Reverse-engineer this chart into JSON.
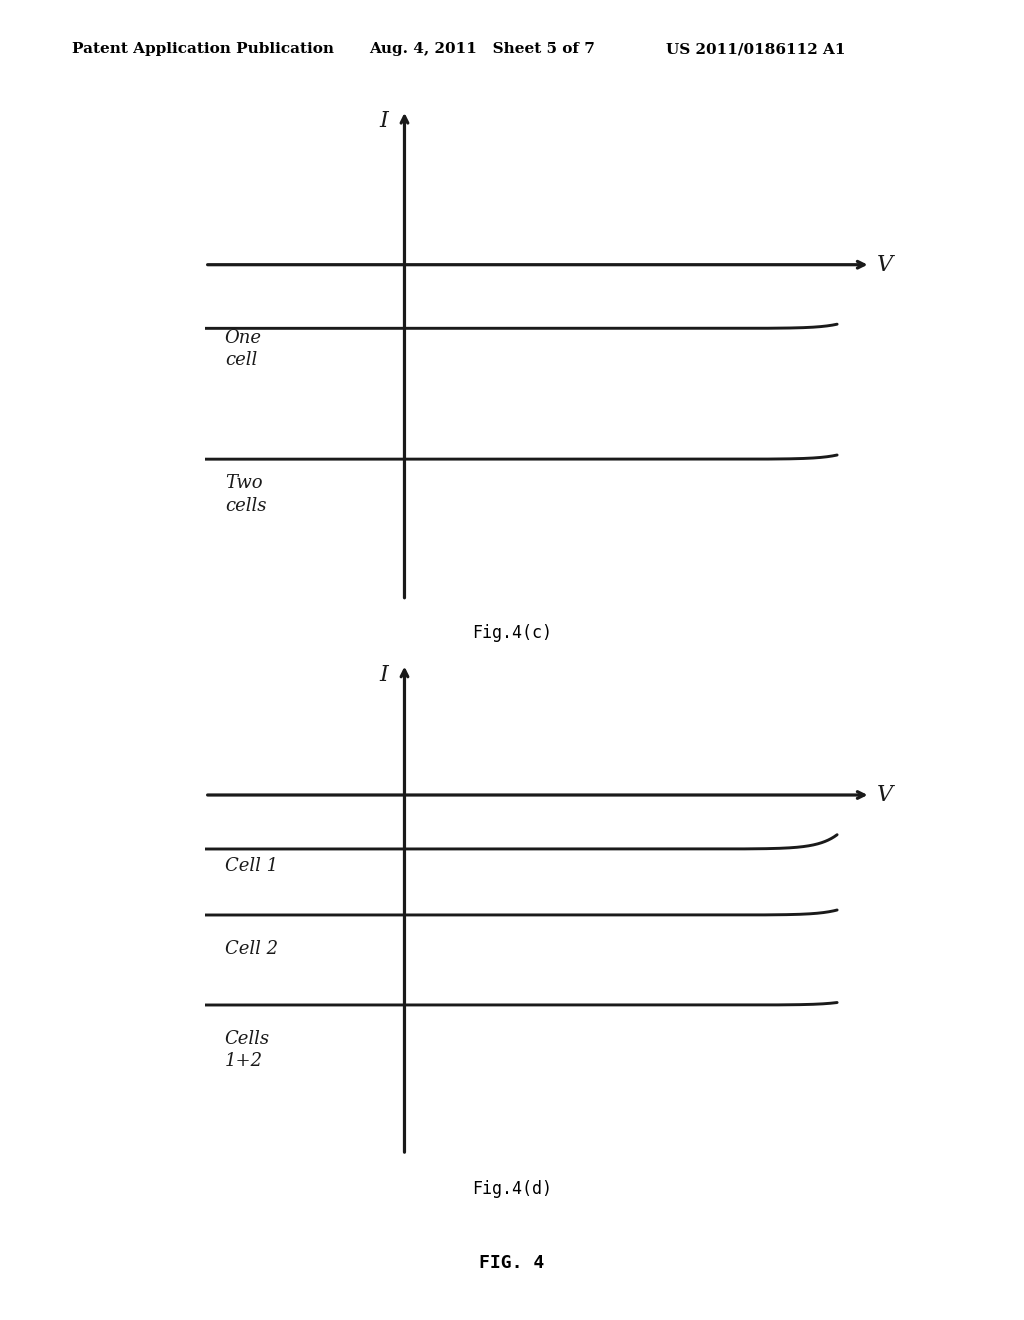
{
  "bg_color": "#ffffff",
  "header_left": "Patent Application Publication",
  "header_middle": "Aug. 4, 2011   Sheet 5 of 7",
  "header_right": "US 2011/0186112 A1",
  "header_fontsize": 11,
  "fig4c_caption": "Fig.4(c)",
  "fig4d_caption": "Fig.4(d)",
  "fig4_caption": "FIG. 4",
  "caption_fontsize": 12,
  "fig4_fontsize": 13,
  "axis_label_I": "I",
  "axis_label_V": "V",
  "label_one_cell": "One\ncell",
  "label_two_cells": "Two\ncells",
  "label_cell1": "Cell 1",
  "label_cell2": "Cell 2",
  "label_cells12": "Cells\n1+2",
  "annotation_fontsize": 13,
  "curve_color": "#1a1a1a",
  "axis_color": "#1a1a1a",
  "line_width": 1.8,
  "alpha_c": 3.5,
  "alpha_d": 3.5
}
